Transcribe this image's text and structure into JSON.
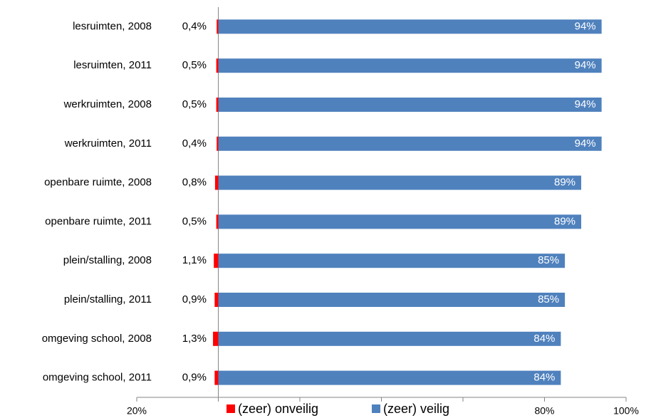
{
  "chart_data": {
    "type": "diverging-bar",
    "categories": [
      "lesruimten, 2008",
      "lesruimten, 2011",
      "werkruimten, 2008",
      "werkruimten, 2011",
      "openbare ruimte, 2008",
      "openbare ruimte, 2011",
      "plein/stalling, 2008",
      "plein/stalling, 2011",
      "omgeving school, 2008",
      "omgeving school, 2011"
    ],
    "series": [
      {
        "name": "(zeer) onveilig",
        "color": "#ff0000",
        "direction": "left",
        "values": [
          0.4,
          0.5,
          0.5,
          0.4,
          0.8,
          0.5,
          1.1,
          0.9,
          1.3,
          0.9
        ],
        "value_labels": [
          "0,4%",
          "0,5%",
          "0,5%",
          "0,4%",
          "0,8%",
          "0,5%",
          "1,1%",
          "0,9%",
          "1,3%",
          "0,9%"
        ]
      },
      {
        "name": "(zeer) veilig",
        "color": "#4f81bd",
        "direction": "right",
        "values": [
          94,
          94,
          94,
          94,
          89,
          89,
          85,
          85,
          84,
          84
        ],
        "value_labels": [
          "94%",
          "94%",
          "94%",
          "94%",
          "89%",
          "89%",
          "85%",
          "85%",
          "84%",
          "84%"
        ]
      }
    ],
    "xlim": [
      -20,
      100
    ],
    "xticks": [
      {
        "value": -20,
        "label": "20%"
      },
      {
        "value": 0,
        "label": null
      },
      {
        "value": 20,
        "label": null
      },
      {
        "value": 40,
        "label": null
      },
      {
        "value": 60,
        "label": null
      },
      {
        "value": 80,
        "label": "80%"
      },
      {
        "value": 100,
        "label": "100%"
      }
    ],
    "legend": "bottom"
  }
}
